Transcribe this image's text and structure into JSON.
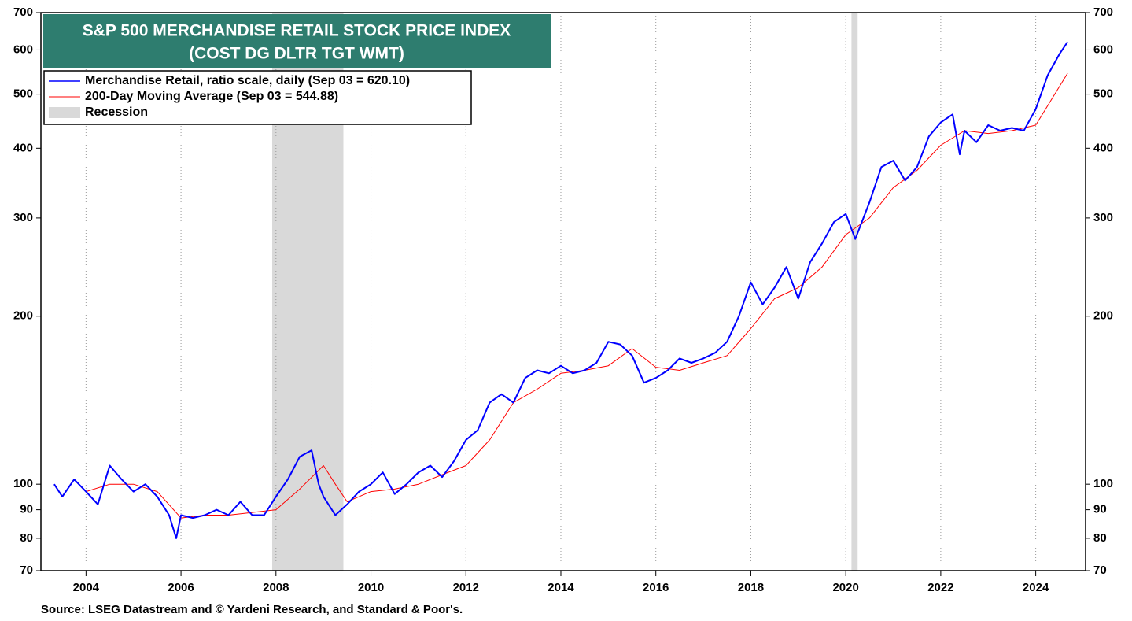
{
  "chart_data": {
    "type": "line",
    "title": [
      "S&P 500 MERCHANDISE RETAIL STOCK PRICE INDEX",
      "(COST DG DLTR TGT WMT)"
    ],
    "source": "Source: LSEG Datastream and © Yardeni Research, and Standard & Poor's.",
    "log_scale": true,
    "grid": "x",
    "legend": "upper left",
    "xlim": [
      2003.05,
      2025.05
    ],
    "xticks": [
      2004,
      2006,
      2008,
      2010,
      2012,
      2014,
      2016,
      2018,
      2020,
      2022,
      2024
    ],
    "ylim": [
      70,
      700
    ],
    "yticks": [
      70,
      80,
      90,
      100,
      200,
      300,
      400,
      500,
      600,
      700
    ],
    "recession": {
      "name": "Recession",
      "color": "#d9d9d9",
      "ranges": [
        [
          2007.92,
          2009.42
        ],
        [
          2020.12,
          2020.25
        ]
      ]
    },
    "series": [
      {
        "name": "Merchandise Retail, ratio scale, daily (Sep 03 = 620.10)",
        "color": "#0000ff",
        "width": 2,
        "x": [
          2003.33,
          2003.5,
          2003.75,
          2004.0,
          2004.25,
          2004.5,
          2004.75,
          2005.0,
          2005.25,
          2005.5,
          2005.75,
          2005.9,
          2006.0,
          2006.25,
          2006.5,
          2006.75,
          2007.0,
          2007.25,
          2007.5,
          2007.75,
          2008.0,
          2008.25,
          2008.5,
          2008.75,
          2008.9,
          2009.0,
          2009.25,
          2009.5,
          2009.75,
          2010.0,
          2010.25,
          2010.5,
          2010.75,
          2011.0,
          2011.25,
          2011.5,
          2011.75,
          2012.0,
          2012.25,
          2012.5,
          2012.75,
          2013.0,
          2013.25,
          2013.5,
          2013.75,
          2014.0,
          2014.25,
          2014.5,
          2014.75,
          2015.0,
          2015.25,
          2015.5,
          2015.75,
          2016.0,
          2016.25,
          2016.5,
          2016.75,
          2017.0,
          2017.25,
          2017.5,
          2017.75,
          2018.0,
          2018.25,
          2018.5,
          2018.75,
          2019.0,
          2019.25,
          2019.5,
          2019.75,
          2020.0,
          2020.2,
          2020.5,
          2020.75,
          2021.0,
          2021.25,
          2021.5,
          2021.75,
          2022.0,
          2022.25,
          2022.4,
          2022.5,
          2022.75,
          2023.0,
          2023.25,
          2023.5,
          2023.75,
          2024.0,
          2024.25,
          2024.5,
          2024.67
        ],
        "values": [
          100,
          95,
          102,
          97,
          92,
          108,
          102,
          97,
          100,
          95,
          88,
          80,
          88,
          87,
          88,
          90,
          88,
          93,
          88,
          88,
          95,
          102,
          112,
          115,
          100,
          95,
          88,
          92,
          97,
          100,
          105,
          96,
          100,
          105,
          108,
          103,
          110,
          120,
          125,
          140,
          145,
          140,
          155,
          160,
          158,
          163,
          158,
          160,
          165,
          180,
          178,
          170,
          152,
          155,
          160,
          168,
          165,
          168,
          172,
          180,
          200,
          230,
          210,
          225,
          245,
          215,
          250,
          270,
          295,
          305,
          275,
          320,
          370,
          380,
          350,
          370,
          420,
          445,
          460,
          390,
          430,
          410,
          440,
          430,
          435,
          430,
          470,
          540,
          590,
          620.1
        ]
      },
      {
        "name": "200-Day Moving Average (Sep 03 = 544.88)",
        "color": "#ff0000",
        "width": 1,
        "x": [
          2004.0,
          2004.5,
          2005.0,
          2005.5,
          2006.0,
          2006.5,
          2007.0,
          2007.5,
          2008.0,
          2008.5,
          2009.0,
          2009.25,
          2009.5,
          2010.0,
          2010.5,
          2011.0,
          2011.5,
          2012.0,
          2012.5,
          2013.0,
          2013.5,
          2014.0,
          2014.5,
          2015.0,
          2015.5,
          2016.0,
          2016.5,
          2017.0,
          2017.5,
          2018.0,
          2018.5,
          2019.0,
          2019.5,
          2020.0,
          2020.5,
          2021.0,
          2021.5,
          2022.0,
          2022.5,
          2023.0,
          2023.5,
          2024.0,
          2024.67
        ],
        "values": [
          97,
          100,
          100,
          97,
          87,
          88,
          88,
          89,
          90,
          98,
          108,
          100,
          93,
          97,
          98,
          100,
          104,
          108,
          120,
          140,
          148,
          158,
          160,
          163,
          175,
          162,
          160,
          165,
          170,
          190,
          215,
          225,
          245,
          280,
          300,
          340,
          365,
          405,
          430,
          425,
          430,
          440,
          544.88
        ]
      }
    ]
  }
}
